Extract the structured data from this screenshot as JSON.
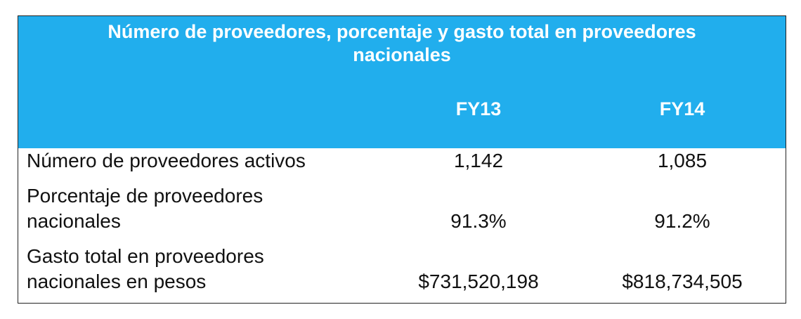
{
  "table": {
    "title": "Número de proveedores, porcentaje y gasto total en proveedores nacionales",
    "title_line1": "Número de proveedores, porcentaje y gasto total en proveedores",
    "title_line2": "nacionales",
    "columns": [
      "FY13",
      "FY14"
    ],
    "header_color": "#21aeed",
    "rows": [
      {
        "label_lines": [
          "Número de proveedores activos"
        ],
        "values": [
          "1,142",
          "1,085"
        ]
      },
      {
        "label_lines": [
          "Porcentaje de proveedores",
          "nacionales"
        ],
        "values": [
          "91.3%",
          "91.2%"
        ]
      },
      {
        "label_lines": [
          "Gasto total en proveedores",
          "nacionales en pesos"
        ],
        "values": [
          "$731,520,198",
          "$818,734,505"
        ]
      }
    ]
  }
}
